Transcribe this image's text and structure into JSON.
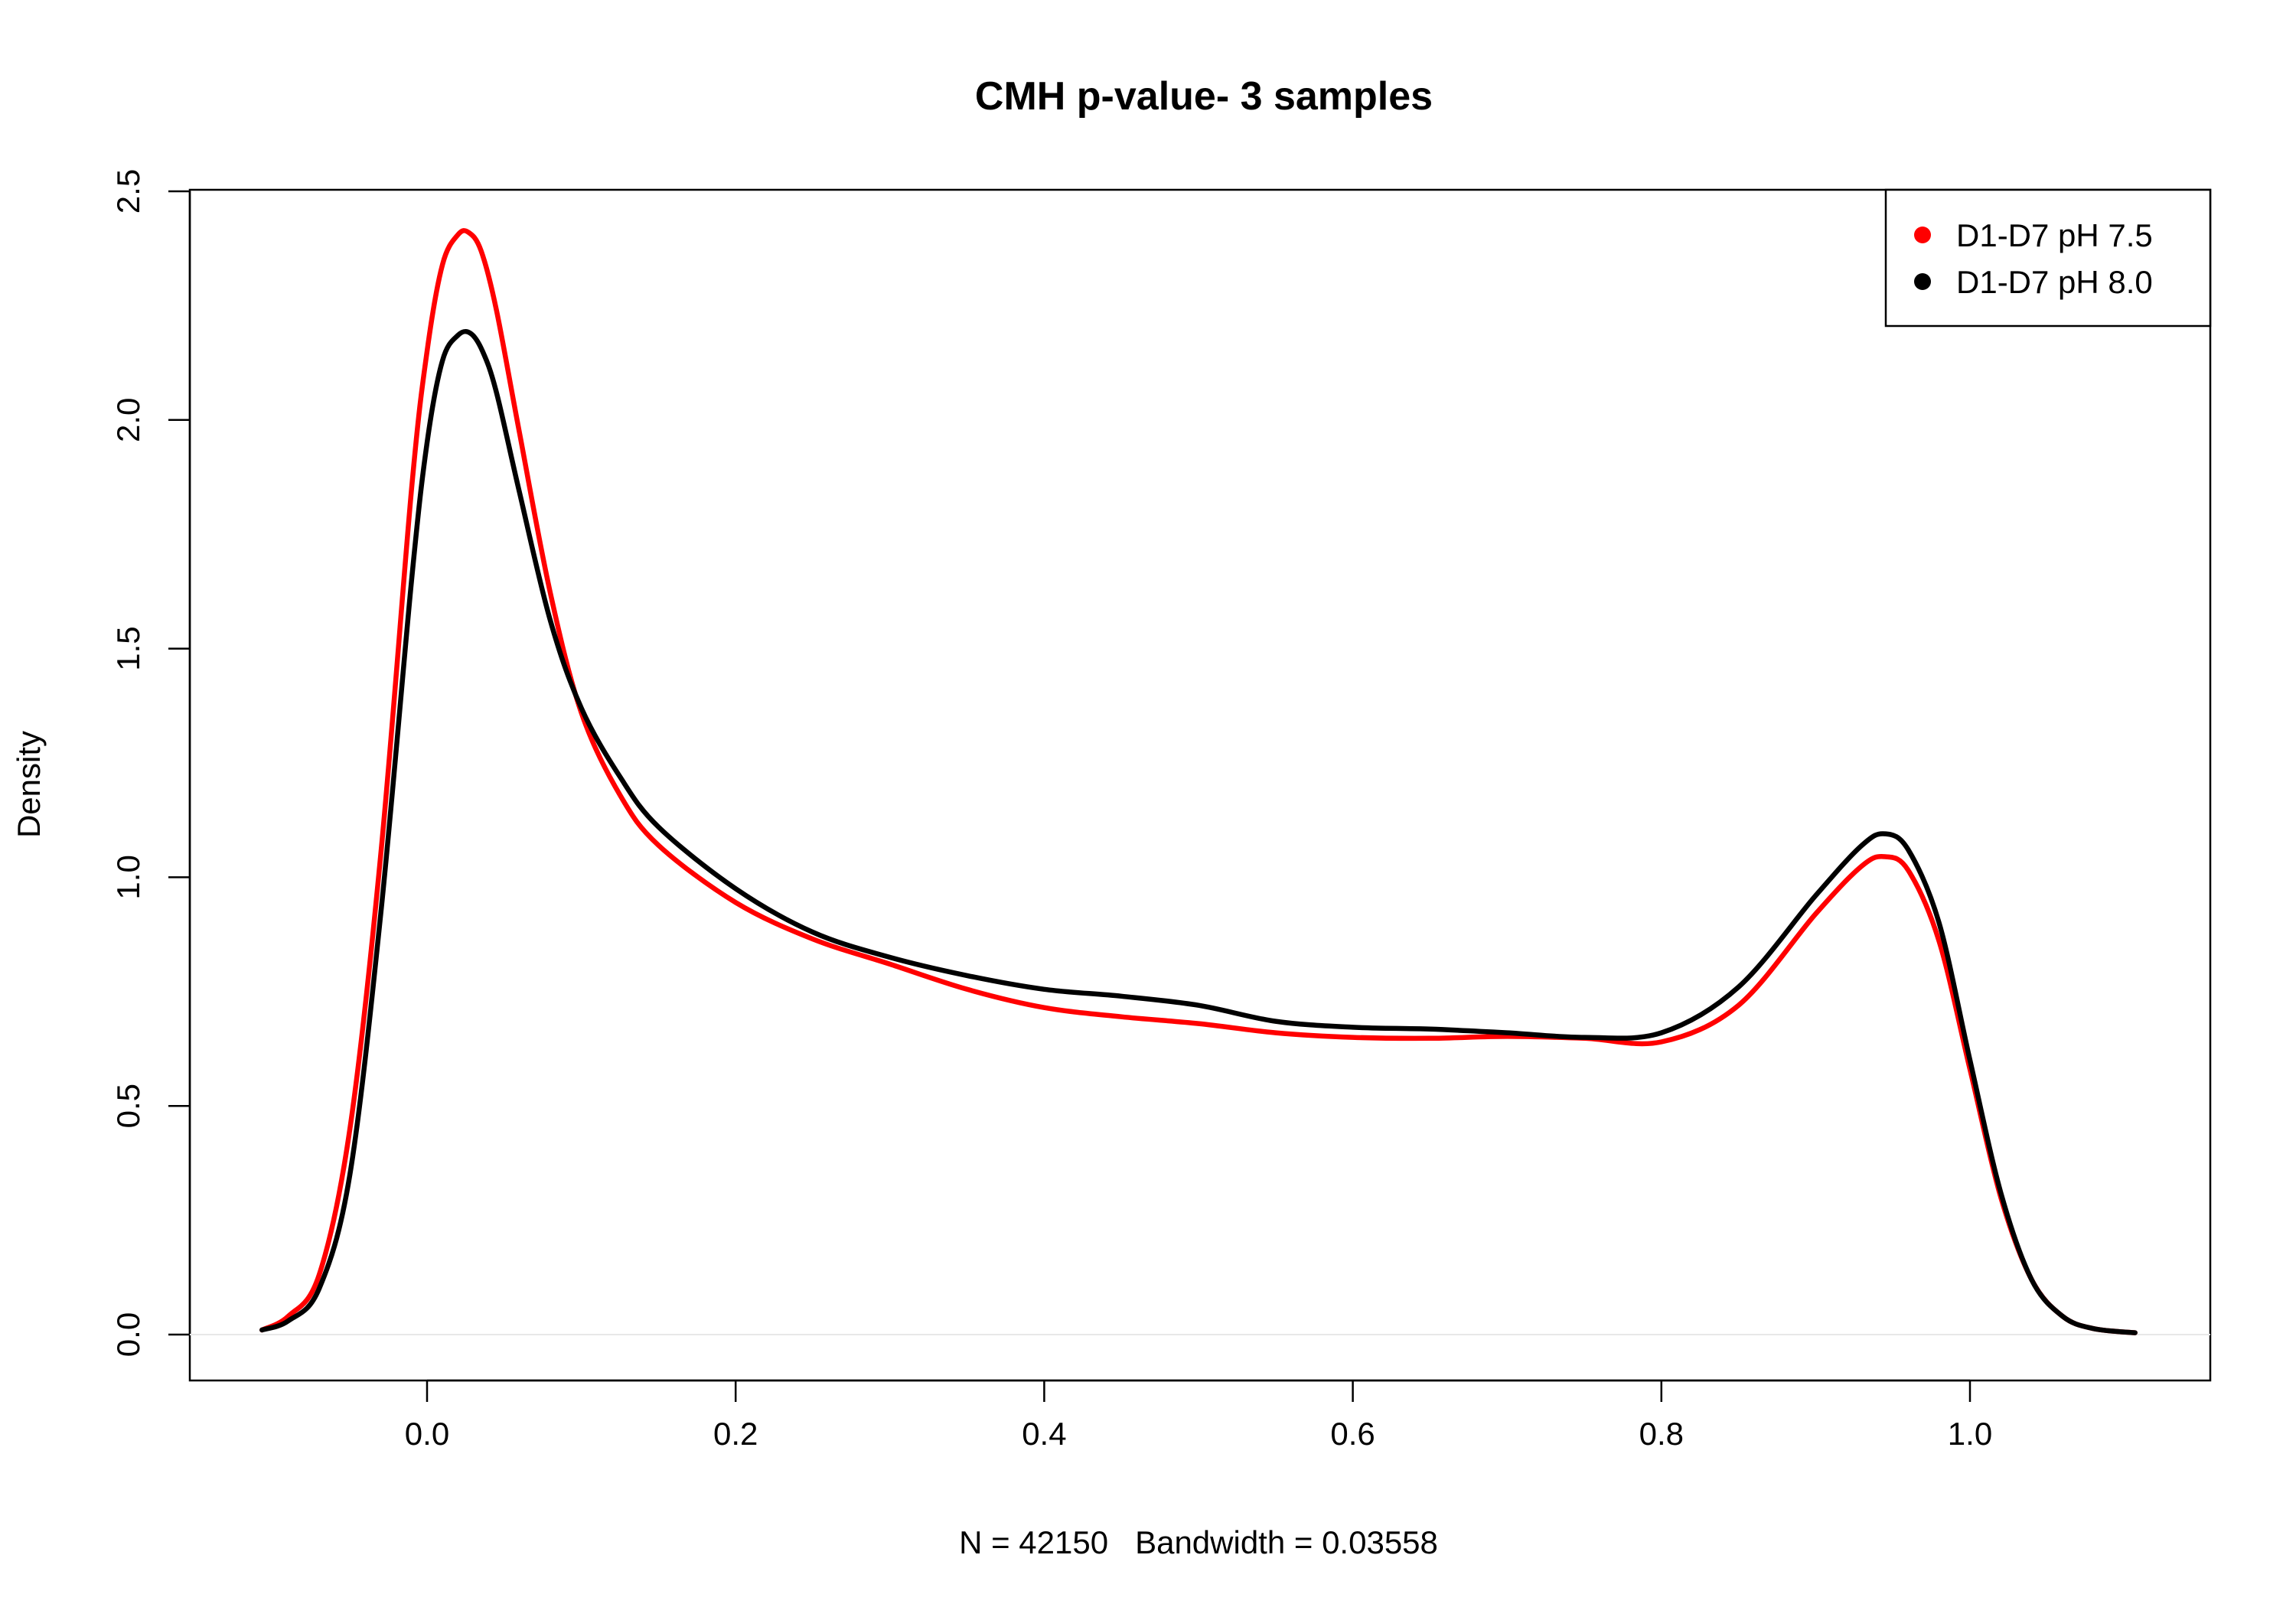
{
  "chart_data": {
    "type": "line",
    "title": "CMH p-value- 3 samples",
    "xlabel": "N = 42150   Bandwidth = 0.03558",
    "ylabel": "Density",
    "xlim": [
      -0.11,
      1.11
    ],
    "ylim": [
      0,
      2.5
    ],
    "x_ticks": [
      "0.0",
      "0.2",
      "0.4",
      "0.6",
      "0.8",
      "1.0"
    ],
    "y_ticks": [
      "0.0",
      "0.5",
      "1.0",
      "1.5",
      "2.0",
      "2.5"
    ],
    "grid": false,
    "legend_position": "top-right",
    "series": [
      {
        "name": "D1-D7 pH 7.5",
        "color": "#ff0000",
        "x": [
          -0.107,
          -0.09,
          -0.07,
          -0.05,
          -0.03,
          -0.01,
          0.0,
          0.01,
          0.02,
          0.027,
          0.035,
          0.045,
          0.06,
          0.08,
          0.1,
          0.125,
          0.15,
          0.2,
          0.25,
          0.3,
          0.35,
          0.4,
          0.45,
          0.5,
          0.55,
          0.6,
          0.65,
          0.7,
          0.75,
          0.8,
          0.85,
          0.9,
          0.93,
          0.945,
          0.96,
          0.98,
          1.0,
          1.02,
          1.04,
          1.06,
          1.08,
          1.107
        ],
        "y": [
          0.01,
          0.04,
          0.13,
          0.45,
          1.05,
          1.85,
          2.15,
          2.34,
          2.405,
          2.41,
          2.37,
          2.24,
          1.97,
          1.62,
          1.36,
          1.18,
          1.07,
          0.945,
          0.865,
          0.81,
          0.755,
          0.715,
          0.695,
          0.68,
          0.66,
          0.65,
          0.648,
          0.652,
          0.648,
          0.64,
          0.72,
          0.92,
          1.025,
          1.045,
          1.015,
          0.86,
          0.58,
          0.3,
          0.12,
          0.04,
          0.013,
          0.004
        ]
      },
      {
        "name": "D1-D7 pH 8.0",
        "color": "#000000",
        "x": [
          -0.107,
          -0.09,
          -0.07,
          -0.05,
          -0.03,
          -0.01,
          0.0,
          0.01,
          0.02,
          0.028,
          0.036,
          0.045,
          0.06,
          0.08,
          0.1,
          0.125,
          0.15,
          0.2,
          0.25,
          0.3,
          0.35,
          0.4,
          0.45,
          0.5,
          0.55,
          0.6,
          0.65,
          0.7,
          0.75,
          0.8,
          0.85,
          0.9,
          0.93,
          0.945,
          0.96,
          0.98,
          1.0,
          1.02,
          1.04,
          1.06,
          1.08,
          1.107
        ],
        "y": [
          0.01,
          0.03,
          0.1,
          0.35,
          0.92,
          1.65,
          1.95,
          2.13,
          2.185,
          2.19,
          2.15,
          2.06,
          1.84,
          1.56,
          1.37,
          1.22,
          1.11,
          0.975,
          0.88,
          0.825,
          0.785,
          0.755,
          0.74,
          0.72,
          0.685,
          0.672,
          0.668,
          0.66,
          0.65,
          0.66,
          0.76,
          0.96,
          1.07,
          1.095,
          1.06,
          0.9,
          0.6,
          0.31,
          0.12,
          0.04,
          0.013,
          0.004
        ]
      }
    ]
  }
}
